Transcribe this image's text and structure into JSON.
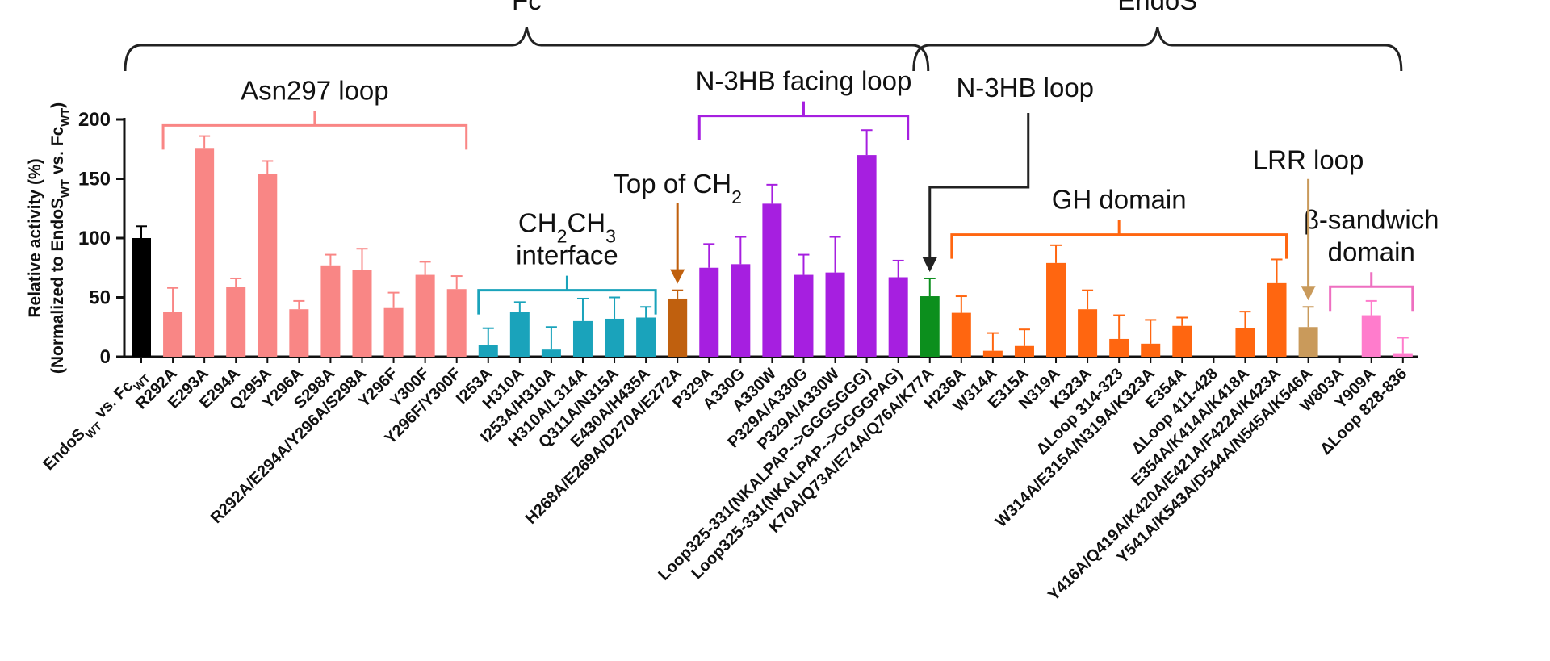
{
  "chart_data": {
    "type": "bar",
    "ylabel_line1": "Relative activity (%)",
    "ylabel_line2_parts": [
      "(Normalized to EndoS",
      "WT",
      " vs. Fc",
      "WT",
      ")"
    ],
    "ylim": [
      0,
      200
    ],
    "yticks": [
      0,
      50,
      100,
      150,
      200
    ],
    "categories": [
      {
        "parts": [
          "EndoS",
          "WT",
          " vs. Fc",
          "WT"
        ],
        "value": 100,
        "err": 10,
        "color": "#000000"
      },
      {
        "parts": [
          "R292A"
        ],
        "value": 38,
        "err": 20,
        "color": "#f98685"
      },
      {
        "parts": [
          "E293A"
        ],
        "value": 176,
        "err": 10,
        "color": "#f98685"
      },
      {
        "parts": [
          "E294A"
        ],
        "value": 59,
        "err": 7,
        "color": "#f98685"
      },
      {
        "parts": [
          "Q295A"
        ],
        "value": 154,
        "err": 11,
        "color": "#f98685"
      },
      {
        "parts": [
          "Y296A"
        ],
        "value": 40,
        "err": 7,
        "color": "#f98685"
      },
      {
        "parts": [
          "S298A"
        ],
        "value": 77,
        "err": 9,
        "color": "#f98685"
      },
      {
        "parts": [
          "R292A/E294A/Y296A/S298A"
        ],
        "value": 73,
        "err": 18,
        "color": "#f98685"
      },
      {
        "parts": [
          "Y296F"
        ],
        "value": 41,
        "err": 13,
        "color": "#f98685"
      },
      {
        "parts": [
          "Y300F"
        ],
        "value": 69,
        "err": 11,
        "color": "#f98685"
      },
      {
        "parts": [
          "Y296F/Y300F"
        ],
        "value": 57,
        "err": 11,
        "color": "#f98685"
      },
      {
        "parts": [
          "I253A"
        ],
        "value": 10,
        "err": 14,
        "color": "#1aa3bb"
      },
      {
        "parts": [
          "H310A"
        ],
        "value": 38,
        "err": 8,
        "color": "#1aa3bb"
      },
      {
        "parts": [
          "I253A/H310A"
        ],
        "value": 6,
        "err": 19,
        "color": "#1aa3bb"
      },
      {
        "parts": [
          "H310A/L314A"
        ],
        "value": 30,
        "err": 19,
        "color": "#1aa3bb"
      },
      {
        "parts": [
          "Q311A/N315A"
        ],
        "value": 32,
        "err": 18,
        "color": "#1aa3bb"
      },
      {
        "parts": [
          "E430A/H435A"
        ],
        "value": 33,
        "err": 9,
        "color": "#1aa3bb"
      },
      {
        "parts": [
          "H268A/E269A/D270A/E272A"
        ],
        "value": 49,
        "err": 7,
        "color": "#c0600e"
      },
      {
        "parts": [
          "P329A"
        ],
        "value": 75,
        "err": 20,
        "color": "#a61fe0"
      },
      {
        "parts": [
          "A330G"
        ],
        "value": 78,
        "err": 23,
        "color": "#a61fe0"
      },
      {
        "parts": [
          "A330W"
        ],
        "value": 129,
        "err": 16,
        "color": "#a61fe0"
      },
      {
        "parts": [
          "P329A/A330G"
        ],
        "value": 69,
        "err": 17,
        "color": "#a61fe0"
      },
      {
        "parts": [
          "P329A/A330W"
        ],
        "value": 71,
        "err": 30,
        "color": "#a61fe0"
      },
      {
        "parts": [
          "Loop325-331(NKALPAP-->GGGSGGG)"
        ],
        "value": 170,
        "err": 21,
        "color": "#a61fe0"
      },
      {
        "parts": [
          "Loop325-331(NKALPAP-->GGGGPAG)"
        ],
        "value": 67,
        "err": 14,
        "color": "#a61fe0"
      },
      {
        "parts": [
          "K70A/Q73A/E74A/Q76A/K77A"
        ],
        "value": 51,
        "err": 15,
        "color": "#0c8f1d"
      },
      {
        "parts": [
          "H236A"
        ],
        "value": 37,
        "err": 14,
        "color": "#ff6610"
      },
      {
        "parts": [
          "W314A"
        ],
        "value": 5,
        "err": 15,
        "color": "#ff6610"
      },
      {
        "parts": [
          "E315A"
        ],
        "value": 9,
        "err": 14,
        "color": "#ff6610"
      },
      {
        "parts": [
          "N319A"
        ],
        "value": 79,
        "err": 15,
        "color": "#ff6610"
      },
      {
        "parts": [
          "K323A"
        ],
        "value": 40,
        "err": 16,
        "color": "#ff6610"
      },
      {
        "parts": [
          "ΔLoop 314-323"
        ],
        "value": 15,
        "err": 20,
        "color": "#ff6610"
      },
      {
        "parts": [
          "W314A/E315A/N319A/K323A"
        ],
        "value": 11,
        "err": 20,
        "color": "#ff6610"
      },
      {
        "parts": [
          "E354A"
        ],
        "value": 26,
        "err": 7,
        "color": "#ff6610"
      },
      {
        "parts": [
          "ΔLoop 411-428"
        ],
        "value": 0,
        "err": 0,
        "color": "#ff6610"
      },
      {
        "parts": [
          "E354A/K414A/K418A"
        ],
        "value": 24,
        "err": 14,
        "color": "#ff6610"
      },
      {
        "parts": [
          "Y416A/Q419A/K420A/E421A/F422A/K423A"
        ],
        "value": 62,
        "err": 20,
        "color": "#ff6610"
      },
      {
        "parts": [
          "Y541A/K543A/D544A/N545A/K546A"
        ],
        "value": 25,
        "err": 17,
        "color": "#c99a5b"
      },
      {
        "parts": [
          "W803A"
        ],
        "value": 0,
        "err": 0,
        "color": "#ff7ccc"
      },
      {
        "parts": [
          "Y909A"
        ],
        "value": 35,
        "err": 12,
        "color": "#ff7ccc"
      },
      {
        "parts": [
          "ΔLoop 828-836"
        ],
        "value": 3,
        "err": 13,
        "color": "#ff7ccc"
      }
    ],
    "braces": [
      {
        "label": "Fc",
        "from": 0,
        "to": 25,
        "color": "#222222"
      },
      {
        "label": "EndoS",
        "from": 25,
        "to": 40,
        "color": "#222222"
      }
    ],
    "region_brackets": [
      {
        "label_lines": [
          [
            "Asn297 loop"
          ]
        ],
        "from": 1,
        "to": 10,
        "color": "#f98685",
        "level": 195
      },
      {
        "label_lines": [
          [
            "CH",
            "2",
            "CH",
            "3"
          ],
          [
            "interface"
          ]
        ],
        "from": 11,
        "to": 16,
        "color": "#1aa3bb",
        "level": 56
      },
      {
        "label_lines": [
          [
            "N-3HB facing loop"
          ]
        ],
        "from": 18,
        "to": 24,
        "color": "#a61fe0",
        "level": 203
      },
      {
        "label_lines": [
          [
            "GH domain"
          ]
        ],
        "from": 26,
        "to": 36,
        "color": "#ff6610",
        "level": 103
      },
      {
        "label_lines": [
          [
            "β-sandwich"
          ],
          [
            "domain"
          ]
        ],
        "from": 38,
        "to": 40,
        "color": "#ee6fc0",
        "level": 59
      }
    ],
    "arrow_labels": [
      {
        "label_parts": [
          "Top of CH",
          "2"
        ],
        "target": 17,
        "color": "#c0600e"
      },
      {
        "label_parts": [
          "N-3HB loop"
        ],
        "target": 25,
        "color": "#222222"
      },
      {
        "label_parts": [
          "LRR loop"
        ],
        "target": 37,
        "color": "#c99a5b"
      }
    ]
  }
}
